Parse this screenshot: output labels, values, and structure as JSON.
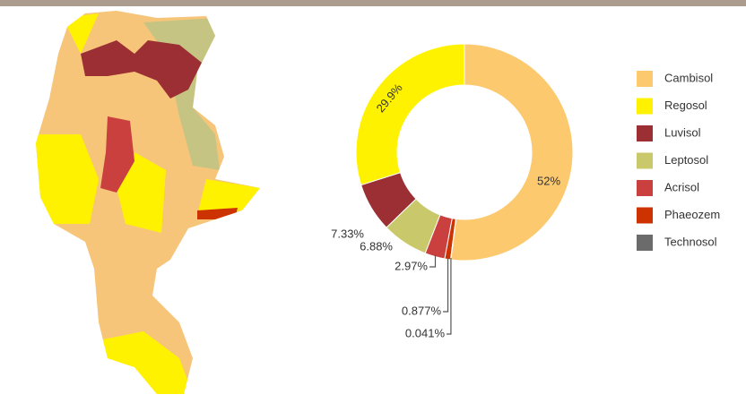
{
  "chart_data": {
    "type": "donut",
    "categories": [
      "Cambisol",
      "Regosol",
      "Luvisol",
      "Leptosol",
      "Acrisol",
      "Phaeozem",
      "Technosol"
    ],
    "values": [
      52,
      29.9,
      7.33,
      6.88,
      2.97,
      0.877,
      0.041
    ],
    "value_labels": [
      "52%",
      "29.9%",
      "7.33%",
      "6.88%",
      "2.97%",
      "0.877%",
      "0.041%"
    ],
    "colors": [
      "#fdc96f",
      "#fff200",
      "#9b2f33",
      "#c9c86a",
      "#c9403f",
      "#cc3300",
      "#6b6b6b"
    ],
    "legend": "right"
  }
}
